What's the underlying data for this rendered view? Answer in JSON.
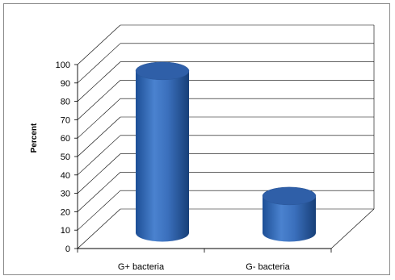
{
  "chart_data": {
    "type": "bar",
    "style": "3d-cylinder",
    "categories": [
      "G+ bacteria",
      "G- bacteria"
    ],
    "values": [
      88,
      20
    ],
    "ylabel": "Percent",
    "xlabel": "",
    "title": "",
    "ylim": [
      0,
      100
    ],
    "yticks": [
      "0",
      "10",
      "20",
      "30",
      "40",
      "50",
      "60",
      "70",
      "80",
      "90",
      "100"
    ],
    "grid": true,
    "legend": "none",
    "colors": {
      "bar": "#3f74c0",
      "bar_dark": "#1f4a8a",
      "bar_top": "#2f5fa8",
      "grid": "#000000",
      "frame": "#8c8c8c"
    }
  }
}
